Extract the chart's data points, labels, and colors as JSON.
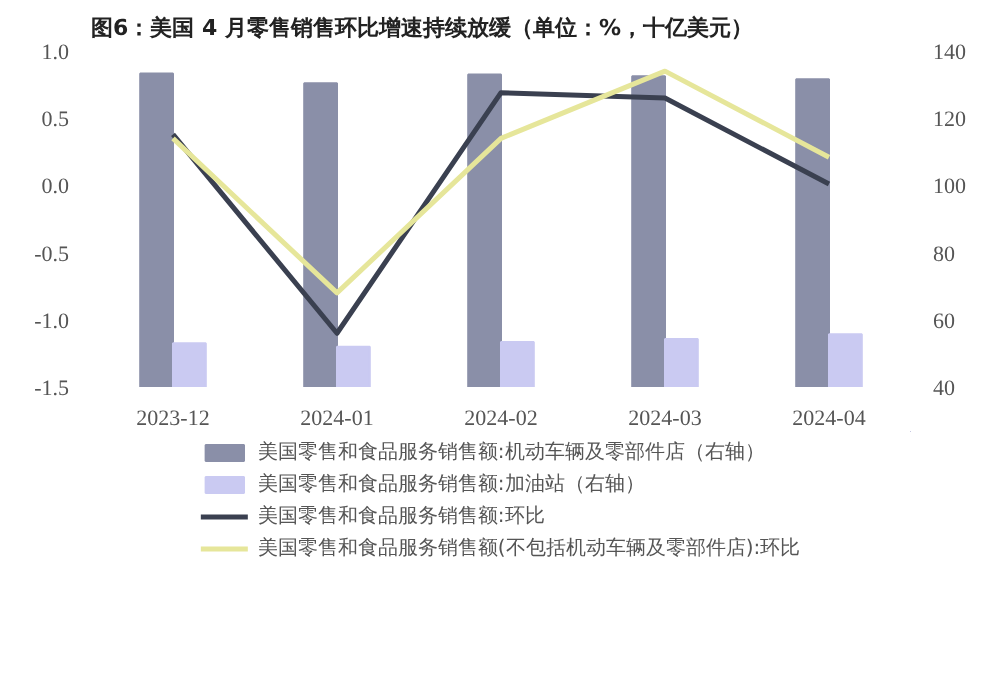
{
  "chart_data": {
    "type": "bar",
    "title": "图6：美国 4 月零售销售环比增速持续放缓（单位：%，十亿美元）",
    "categories": [
      "2023-12",
      "2024-01",
      "2024-02",
      "2024-03",
      "2024-04"
    ],
    "series": [
      {
        "name": "美国零售和食品服务销售额:机动车辆及零部件店（右轴）",
        "color": "#8a8fa8",
        "axis": "y2",
        "values": [
          133.3,
          130.4,
          133,
          132.5,
          131.6
        ]
      },
      {
        "name": "美国零售和食品服务销售额:加油站（右轴）",
        "color": "#cacaf2",
        "axis": "y2",
        "values": [
          53,
          52,
          53.4,
          54.3,
          55.7
        ]
      },
      {
        "name": "美国零售和食品服务销售额:环比",
        "color": "#3a4050",
        "type": "line",
        "values": [
          0.38,
          -1.1,
          0.69,
          0.65,
          0.01
        ]
      },
      {
        "name": "美国零售和食品服务销售额(不包括机动车辆及零部件店):环比",
        "color": "#e6e69a",
        "type": "line",
        "values": [
          0.35,
          -0.8,
          0.35,
          0.85,
          0.21
        ]
      }
    ],
    "ylim": [
      -1.5,
      1.0
    ],
    "yticks": [
      {
        "value": -1.5,
        "label": "-1.5"
      },
      {
        "value": -1.0,
        "label": "-1.0"
      },
      {
        "value": -0.5,
        "label": "-0.5"
      },
      {
        "value": 0,
        "label": "0.0"
      },
      {
        "value": 0.5,
        "label": "0.5"
      },
      {
        "value": 1.0,
        "label": "1.0"
      }
    ],
    "y2lim": [
      40,
      140
    ],
    "y2ticks": [
      40,
      60,
      80,
      100,
      120,
      140
    ],
    "grid": false,
    "legend": "bottom",
    "marker": "none",
    "line_style": "solid"
  }
}
